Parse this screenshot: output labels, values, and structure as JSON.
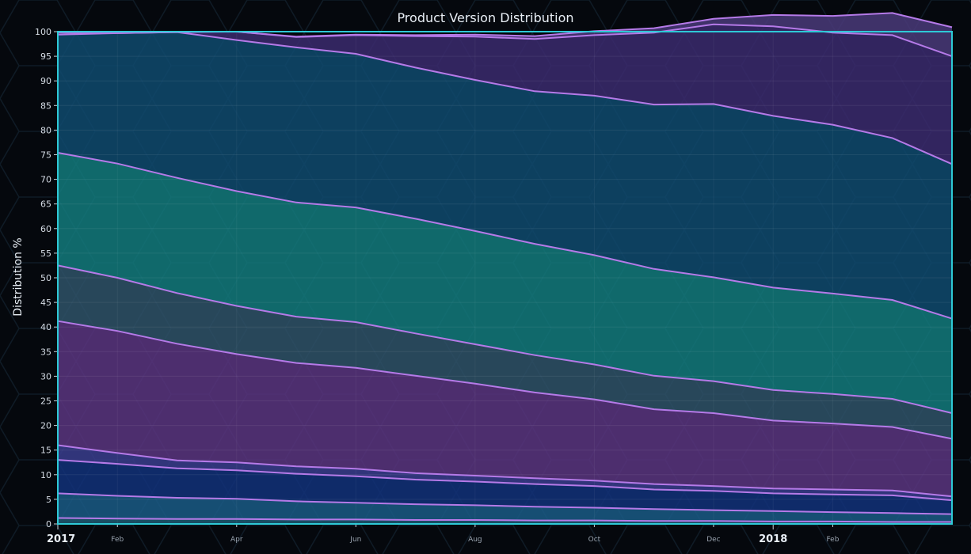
{
  "chart_data": {
    "type": "area",
    "stacked": true,
    "title": "Product Version Distribution",
    "xlabel": "",
    "ylabel": "Distribution %",
    "ylim": [
      0,
      100
    ],
    "yticks": [
      0,
      5,
      10,
      15,
      20,
      25,
      30,
      35,
      40,
      45,
      50,
      55,
      60,
      65,
      70,
      75,
      80,
      85,
      90,
      95,
      100
    ],
    "x": [
      "2017-01",
      "2017-02",
      "2017-03",
      "2017-04",
      "2017-05",
      "2017-06",
      "2017-07",
      "2017-08",
      "2017-09",
      "2017-10",
      "2017-11",
      "2017-12",
      "2018-01",
      "2018-02",
      "2018-03",
      "2018-04"
    ],
    "xticks": [
      {
        "label": "2017",
        "at": "2017-01",
        "major": true
      },
      {
        "label": "Feb",
        "at": "2017-02",
        "major": false
      },
      {
        "label": "Apr",
        "at": "2017-04",
        "major": false
      },
      {
        "label": "Jun",
        "at": "2017-06",
        "major": false
      },
      {
        "label": "Aug",
        "at": "2017-08",
        "major": false
      },
      {
        "label": "Oct",
        "at": "2017-10",
        "major": false
      },
      {
        "label": "Dec",
        "at": "2017-12",
        "major": false
      },
      {
        "label": "2018",
        "at": "2018-01",
        "major": true
      },
      {
        "label": "Feb",
        "at": "2018-02",
        "major": false
      }
    ],
    "grid": true,
    "legend": "none",
    "line_color": "#b57ae8",
    "border_color": "#2ec9d6",
    "series": [
      {
        "values": [
          1.2,
          1.1,
          1.0,
          1.0,
          0.9,
          0.9,
          0.8,
          0.8,
          0.7,
          0.7,
          0.6,
          0.6,
          0.5,
          0.5,
          0.4,
          0.4
        ],
        "color": "#1d5a73"
      },
      {
        "values": [
          5.0,
          4.6,
          4.3,
          4.1,
          3.7,
          3.4,
          3.2,
          3.0,
          2.8,
          2.6,
          2.4,
          2.2,
          2.1,
          1.9,
          1.8,
          1.6
        ],
        "color": "#1a5a86"
      },
      {
        "values": [
          6.8,
          6.5,
          6.0,
          5.8,
          5.6,
          5.4,
          5.0,
          4.8,
          4.6,
          4.4,
          4.0,
          3.9,
          3.6,
          3.6,
          3.6,
          2.8
        ],
        "color": "#12317a"
      },
      {
        "values": [
          3.0,
          2.2,
          1.6,
          1.6,
          1.5,
          1.5,
          1.3,
          1.2,
          1.2,
          1.1,
          1.1,
          1.0,
          1.0,
          1.0,
          1.0,
          0.8
        ],
        "color": "#3a3d8e"
      },
      {
        "values": [
          25.2,
          24.8,
          23.7,
          22.0,
          21.0,
          20.5,
          19.8,
          18.7,
          17.4,
          16.5,
          15.2,
          14.8,
          13.8,
          13.4,
          12.9,
          11.7
        ],
        "color": "#5a3580"
      },
      {
        "values": [
          11.3,
          10.8,
          10.3,
          9.8,
          9.4,
          9.3,
          8.6,
          8.0,
          7.6,
          7.1,
          6.8,
          6.5,
          6.2,
          6.0,
          5.7,
          5.2
        ],
        "color": "#2f5268"
      },
      {
        "values": [
          22.9,
          23.2,
          23.4,
          23.3,
          23.2,
          23.3,
          23.3,
          23.0,
          22.6,
          22.2,
          21.7,
          21.1,
          20.8,
          20.4,
          20.1,
          19.2
        ],
        "color": "#137a7c"
      },
      {
        "values": [
          24.0,
          26.5,
          29.6,
          30.7,
          31.5,
          31.2,
          30.7,
          30.7,
          31.0,
          32.4,
          33.4,
          35.2,
          34.9,
          34.3,
          32.9,
          31.4
        ],
        "color": "#0f4a6e"
      },
      {
        "values": [
          0.4,
          0.0,
          0.0,
          1.7,
          2.1,
          3.8,
          6.4,
          8.8,
          10.6,
          12.3,
          14.6,
          16.2,
          18.2,
          18.7,
          20.9,
          21.9
        ],
        "color": "#3b2a6e"
      },
      {
        "values": [
          0.2,
          0.3,
          0.1,
          0.0,
          0.1,
          0.1,
          0.2,
          0.4,
          0.6,
          0.8,
          0.9,
          1.1,
          2.3,
          3.4,
          4.5,
          5.9
        ],
        "color": "#4a3a7a"
      },
      {
        "values": [
          0.0,
          0.0,
          0.0,
          0.0,
          0.0,
          0.0,
          0.0,
          0.0,
          0.0,
          0.0,
          0.0,
          0.0,
          0.0,
          0.0,
          0.0,
          0.0
        ],
        "color": "#6b4a7c"
      }
    ]
  }
}
